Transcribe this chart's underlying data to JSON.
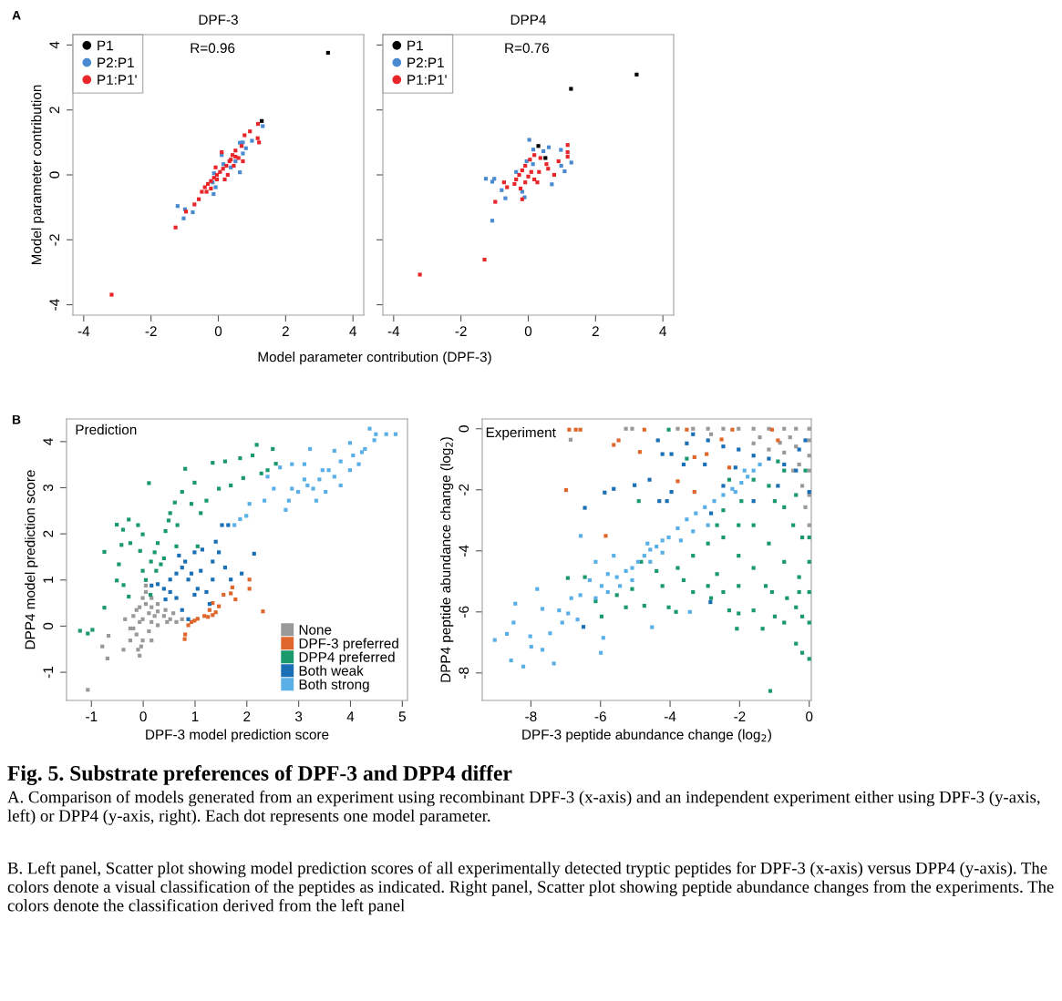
{
  "chart_data": [
    {
      "type": "scatter",
      "title": "DPF-3",
      "xlabel": "Model parameter contribution (DPF-3)",
      "ylabel": "Model parameter contribution",
      "xlim": [
        -4.32,
        4.32
      ],
      "ylim": [
        -4.32,
        4.32
      ],
      "xticks": [
        -4,
        -2,
        0,
        2,
        4
      ],
      "yticks": [
        -4,
        -2,
        0,
        2,
        4
      ],
      "marker": "square",
      "legend": "top left",
      "annotations": [
        "A",
        "R=0.96"
      ],
      "series": [
        {
          "name": "P1",
          "color": "#000000",
          "x": [
            3.26,
            1.29
          ],
          "values": [
            3.76,
            1.66
          ]
        },
        {
          "name": "P2:P1",
          "color": "#4a8ad0",
          "x": [
            1.32,
            1.0,
            0.82,
            0.73,
            0.64,
            0.64,
            0.1,
            0.15,
            0.37,
            -0.13,
            -0.17,
            -0.14,
            -0.08,
            -1.21,
            -0.99,
            -1.03,
            -0.76,
            0.51,
            0.73
          ],
          "values": [
            1.5,
            1.05,
            0.82,
            1.0,
            0.99,
            0.08,
            0.61,
            0.33,
            0.23,
            0.05,
            -0.23,
            -0.59,
            -0.38,
            -0.96,
            -1.06,
            -1.34,
            -1.15,
            0.42,
            0.66
          ]
        },
        {
          "name": "P1:P1'",
          "color": "#e8262a",
          "x": [
            -3.17,
            -1.27,
            -0.96,
            -0.71,
            -0.58,
            1.18,
            0.94,
            0.78,
            1.17,
            1.21,
            0.69,
            0.51,
            0.42,
            0.33,
            0.24,
            0.14,
            0.05,
            -0.04,
            -0.13,
            -0.22,
            -0.31,
            -0.4,
            -0.49,
            -0.35,
            0.19,
            0.73,
            0.6,
            0.46,
            0.28,
            -0.08,
            0.1,
            -0.04,
            0.51,
            0.37,
            -0.22
          ],
          "values": [
            -3.69,
            -1.62,
            -1.13,
            -0.91,
            -0.75,
            1.57,
            1.34,
            1.22,
            1.13,
            1.0,
            0.89,
            0.75,
            0.61,
            0.42,
            0.28,
            0.19,
            0.09,
            0.0,
            -0.09,
            -0.19,
            -0.28,
            -0.38,
            -0.52,
            -0.52,
            -0.14,
            0.42,
            0.52,
            0.28,
            0.0,
            0.23,
            0.7,
            -0.14,
            0.56,
            0.47,
            -0.42
          ]
        }
      ]
    },
    {
      "type": "scatter",
      "title": "DPP4",
      "xlim": [
        -4.32,
        4.32
      ],
      "ylim": [
        -4.32,
        4.32
      ],
      "xticks": [
        -4,
        -2,
        0,
        2,
        4
      ],
      "yticks": [
        -4,
        -2,
        0,
        2,
        4
      ],
      "tick_labels": "x",
      "marker": "square",
      "legend": "top left",
      "annotations": [
        "R=0.76"
      ],
      "series": [
        {
          "name": "P1",
          "color": "#000000",
          "x": [
            3.22,
            1.27,
            0.3,
            0.51
          ],
          "values": [
            3.09,
            2.65,
            0.89,
            0.52
          ]
        },
        {
          "name": "P2:P1",
          "color": "#4a8ad0",
          "x": [
            0.03,
            0.15,
            0.45,
            0.61,
            0.97,
            1.28,
            1.08,
            0.98,
            0.7,
            -1.26,
            -1.01,
            -1.07,
            -0.79,
            -0.68,
            -0.11,
            -0.18,
            -1.07,
            -0.05,
            0.14,
            -0.36
          ],
          "values": [
            1.08,
            0.78,
            0.73,
            0.85,
            0.77,
            0.38,
            0.11,
            0.28,
            -0.29,
            -0.12,
            -0.12,
            -0.21,
            -0.47,
            -0.72,
            -0.69,
            -0.52,
            -1.41,
            0.42,
            0.33,
            0.09
          ]
        },
        {
          "name": "P1:P1'",
          "color": "#e8262a",
          "x": [
            -3.22,
            -1.3,
            -0.98,
            1.17,
            1.17,
            1.17,
            0.9,
            0.77,
            0.59,
            0.54,
            0.36,
            0.18,
            0.05,
            -0.09,
            -0.18,
            -0.27,
            -0.36,
            -0.41,
            -0.23,
            -0.18,
            -0.72,
            -0.63,
            0.09,
            0.0,
            0.18,
            0.32,
            -0.09,
            0.27
          ],
          "values": [
            -3.07,
            -2.61,
            -0.83,
            0.92,
            0.7,
            0.56,
            0.42,
            0.0,
            0.19,
            0.33,
            0.52,
            0.61,
            0.47,
            0.28,
            0.14,
            0.0,
            -0.14,
            -0.28,
            -0.42,
            -0.75,
            -0.23,
            -0.38,
            0.09,
            -0.05,
            -0.14,
            0.09,
            -0.23,
            -0.23
          ]
        }
      ]
    },
    {
      "type": "scatter",
      "xlabel": "DPF-3 model prediction score",
      "ylabel": "DPP4 model prediction score",
      "xlim": [
        -1.48,
        5.1
      ],
      "ylim": [
        -1.61,
        4.49
      ],
      "xticks": [
        -1,
        0,
        1,
        2,
        3,
        4,
        5
      ],
      "yticks": [
        -1,
        0,
        1,
        2,
        3,
        4
      ],
      "marker": "square",
      "legend": "bottom right",
      "annotations": [
        "B",
        "Prediction"
      ],
      "series": [
        {
          "name": "None",
          "color": "#999999",
          "x": [
            -1.07,
            -0.69,
            -0.79,
            -0.67,
            -0.38,
            -0.35,
            -0.07,
            -0.1,
            -0.25,
            -0.25,
            -0.19,
            -0.07,
            -0.01,
            0.05,
            0.05,
            0.16,
            0.28,
            0.43,
            0.58,
            0.75,
            0.64,
            0.46,
            0.28,
            0.11,
            -0.01,
            -0.04,
            0.16,
            0.11,
            0.22,
            0.4,
            -0.07,
            -0.13,
            0.05,
            0.16,
            -0.01,
            -0.13,
            -0.19,
            0.28,
            0.52,
            0.16
          ],
          "values": [
            -1.38,
            -0.7,
            -0.44,
            -0.21,
            -0.51,
            0.15,
            -0.64,
            -0.51,
            -0.31,
            -0.05,
            0.22,
            0.41,
            0.61,
            0.74,
            0.88,
            0.61,
            0.48,
            0.35,
            0.28,
            0.15,
            0.09,
            0.09,
            0.02,
            -0.11,
            -0.31,
            -0.44,
            0.09,
            0.28,
            0.22,
            0.22,
            0.09,
            -0.18,
            0.48,
            0.41,
            0.15,
            0.35,
            -0.05,
            0.32,
            0.15,
            -0.31
          ]
        },
        {
          "name": "DPF-3 preferred",
          "color": "#e0672c",
          "x": [
            0.8,
            0.81,
            0.87,
            0.99,
            1.05,
            1.18,
            1.34,
            1.4,
            1.28,
            1.34,
            1.55,
            1.69,
            1.78,
            1.72,
            2.05,
            2.05,
            2.31,
            1.46,
            0.93,
            1.25
          ],
          "values": [
            -0.28,
            -0.18,
            0.02,
            0.12,
            0.16,
            0.22,
            0.24,
            0.3,
            0.35,
            0.5,
            0.68,
            0.71,
            0.58,
            0.84,
            1.01,
            0.81,
            0.32,
            0.43,
            0.09,
            0.2
          ]
        },
        {
          "name": "DPP4 preferred",
          "color": "#1a9a6c",
          "x": [
            -1.22,
            -1.07,
            -0.98,
            -0.75,
            -0.75,
            -0.51,
            -0.47,
            -0.51,
            -0.39,
            -0.38,
            -0.28,
            -0.28,
            -0.25,
            -0.1,
            -0.06,
            -0.01,
            0.05,
            0.11,
            0.15,
            0.22,
            0.25,
            0.28,
            0.34,
            0.43,
            0.49,
            0.52,
            0.61,
            0.66,
            0.75,
            0.81,
            0.93,
            0.99,
            1.11,
            1.22,
            1.34,
            1.46,
            1.58,
            1.69,
            1.87,
            2.11,
            2.19,
            2.28,
            2.4,
            2.5,
            2.56,
            1.93,
            1.05,
            0.4,
            0.64,
            0.14,
            -0.42,
            -0.01
          ],
          "values": [
            -0.1,
            -0.16,
            -0.08,
            0.4,
            1.61,
            2.2,
            1.34,
            0.99,
            2.09,
            0.89,
            2.31,
            0.64,
            1.8,
            2.19,
            1.63,
            1.2,
            1.0,
            3.1,
            1.4,
            1.6,
            1.2,
            1.8,
            1.34,
            2.06,
            2.29,
            2.45,
            2.68,
            2.19,
            2.91,
            3.41,
            2.65,
            3.11,
            2.45,
            2.72,
            3.54,
            2.98,
            3.57,
            3.05,
            3.64,
            3.7,
            3.93,
            3.31,
            3.38,
            3.84,
            3.52,
            3.21,
            1.73,
            1.47,
            1.73,
            0.68,
            1.76,
            1.99
          ]
        },
        {
          "name": "Both weak",
          "color": "#1a6fb5",
          "x": [
            0.16,
            0.28,
            0.4,
            0.52,
            0.43,
            0.64,
            0.75,
            0.87,
            0.99,
            0.87,
            0.75,
            0.99,
            1.11,
            1.22,
            1.34,
            1.4,
            1.34,
            1.52,
            1.64,
            1.46,
            1.69,
            1.58,
            1.9,
            2.14,
            1.28,
            1.05,
            0.69,
            0.81,
            0.52,
            0.64,
            0.93,
            1.14
          ],
          "values": [
            0.88,
            0.91,
            0.81,
            0.74,
            0.58,
            0.61,
            0.35,
            0.15,
            0.68,
            1.01,
            1.27,
            1.6,
            1.2,
            0.74,
            1.01,
            1.83,
            1.4,
            2.19,
            2.19,
            1.6,
            1.01,
            1.27,
            1.14,
            1.57,
            0.48,
            0.81,
            1.53,
            1.4,
            1.01,
            1.14,
            1.14,
            1.66
          ]
        },
        {
          "name": "Both strong",
          "color": "#5ab0e6",
          "x": [
            4.69,
            4.87,
            4.37,
            4.49,
            4.46,
            3.99,
            4.28,
            4.05,
            3.69,
            3.22,
            3.81,
            3.58,
            3.4,
            3.69,
            3.81,
            3.52,
            3.28,
            3.11,
            2.99,
            2.87,
            2.81,
            2.75,
            2.52,
            2.4,
            2.64,
            2.87,
            3.11,
            2.34,
            2.05,
            1.99,
            1.87,
            1.76,
            3.34,
            3.99,
            4.16,
            3.46,
            3.17,
            4.22
          ],
          "values": [
            4.16,
            4.16,
            4.28,
            4.16,
            4.03,
            3.97,
            3.84,
            3.7,
            3.8,
            3.84,
            3.57,
            3.38,
            3.18,
            3.24,
            3.05,
            2.91,
            2.98,
            3.18,
            2.91,
            2.98,
            2.72,
            2.52,
            2.98,
            3.24,
            3.44,
            3.51,
            3.51,
            2.72,
            2.65,
            2.39,
            2.32,
            2.19,
            2.72,
            3.38,
            3.51,
            3.38,
            3.05,
            3.77
          ]
        }
      ]
    },
    {
      "type": "scatter",
      "xlabel": "DPF-3 peptide abundance change (log$_{2}$)",
      "ylabel": "DPP4 peptide abundance change (log$_{2}$)",
      "xlim": [
        -9.4,
        0.06
      ],
      "ylim": [
        -8.9,
        0.32
      ],
      "xticks": [
        -8,
        -6,
        -4,
        -2,
        0
      ],
      "yticks": [
        -8,
        -6,
        -4,
        -2,
        0
      ],
      "marker": "square",
      "annotations": [
        "Experiment",
        "Fig. 5. Substrate preferences of DPF-3 and DPP4 differ",
        "A. Comparison of models generated from an experiment using recombinant DPF-3 (x-axis) and an independent experiment either using DPF-3 (y-axis, left) or DPP4 (y-axis, right). Each dot represents one model parameter.",
        "B. Left panel, Scatter plot showing model prediction scores of all experimentally detected tryptic peptides for DPF-3 (x-axis) versus DPP4 (y-axis). The colors denote a visual classification of the peptides as indicated. Right panel, Scatter plot showing peptide abundance changes from the experiments. The colors denote the classification derived from the left panel"
      ],
      "series": [
        {
          "color": "#999999",
          "x": [
            0,
            -0.38,
            -0.72,
            -1.16,
            -1.6,
            -2.03,
            -2.47,
            -2.91,
            -3.34,
            -3.78,
            -5.27,
            -5.09,
            0,
            0,
            0,
            0,
            0,
            -0.38,
            -0.72,
            -0.29,
            -0.84,
            -1.16,
            -0.2,
            -0.11,
            -0.55,
            -1.42,
            -2.82,
            -6.86,
            -0.46,
            -1.6
          ],
          "values": [
            0,
            0,
            0,
            0,
            0,
            0,
            0,
            0,
            0,
            0,
            0,
            0,
            -0.38,
            -0.88,
            -1.37,
            -2.17,
            -3.16,
            -0.58,
            -0.78,
            -1.17,
            -0.46,
            -0.68,
            -1.87,
            -2.57,
            -0.28,
            -0.28,
            -0.18,
            -0.36,
            -1.37,
            -0.48
          ]
        },
        {
          "color": "#e0672c",
          "x": [
            -6.9,
            -6.71,
            -6.58,
            -6.99,
            -5.85,
            -5.62,
            -5.48,
            -4.87,
            -4.74,
            -3.3,
            -3.3,
            -2.95,
            -2.52,
            -2.3,
            -1.07,
            -0.9,
            -2.21,
            -3.78,
            -3.52
          ],
          "values": [
            -0.03,
            -0.03,
            -0.03,
            -2.01,
            -3.51,
            -0.53,
            -0.38,
            -0.76,
            -0.03,
            -0.93,
            -2.07,
            -0.83,
            -0.35,
            -1.27,
            -0.03,
            -0.38,
            -0.03,
            -1.72,
            -0.03
          ]
        },
        {
          "color": "#1a9a6c",
          "x": [
            0,
            0,
            0,
            0,
            0,
            -0.2,
            -0.38,
            -0.72,
            -0.99,
            -1.07,
            -1.34,
            -1.12,
            -1.6,
            -2.03,
            -2.08,
            -2.3,
            -2.47,
            -2.65,
            -2.91,
            -3.34,
            -3.61,
            -3.83,
            -4.04,
            -4.22,
            -4.74,
            -4.83,
            -5.09,
            -5.27,
            -5.53,
            -5.97,
            -6.14,
            -6.45,
            -6.94,
            -4.9,
            -2.03,
            -1.6,
            -1.16,
            -0.72,
            -0.29,
            -0.2,
            -0.46,
            -0.72,
            -0.99,
            -0.38,
            -1.6,
            -2.03,
            -2.47,
            -2.91,
            -3.34,
            -2.65,
            -1.95,
            -2.47,
            -1.16,
            -1.6,
            -0.72,
            -0.11,
            -0.9,
            -2.3,
            -3.52,
            -4.04,
            -0.2,
            -0.38,
            -0.64,
            -0.29,
            -2.82,
            -1.25,
            -2.03,
            -3.78,
            -4.39
          ],
          "values": [
            -3.56,
            -4.36,
            -5.35,
            -6.35,
            -7.54,
            -7.34,
            -7.04,
            -6.35,
            -6.15,
            -5.35,
            -6.55,
            -8.59,
            -5.95,
            -6.05,
            -6.55,
            -5.95,
            -5.35,
            -4.76,
            -5.15,
            -5.35,
            -4.96,
            -6.0,
            -5.85,
            -5.15,
            -5.8,
            -4.36,
            -5.25,
            -5.85,
            -5.45,
            -6.15,
            -5.65,
            -4.86,
            -4.89,
            -2.37,
            -4.16,
            -4.56,
            -3.76,
            -4.36,
            -4.86,
            -3.56,
            -3.16,
            -2.57,
            -2.37,
            -2.17,
            -3.16,
            -3.16,
            -3.56,
            -3.76,
            -4.16,
            -3.16,
            -2.37,
            -2.67,
            -1.87,
            -1.67,
            -1.37,
            -1.37,
            -1.07,
            -1.67,
            -0.98,
            -0.03,
            -6.15,
            -5.85,
            -5.55,
            -5.35,
            -5.55,
            -5.15,
            -5.15,
            -4.56,
            -4.66
          ]
        },
        {
          "color": "#1a6fb5",
          "x": [
            0,
            -0.38,
            -0.72,
            -1.16,
            -1.6,
            -2.03,
            -2.47,
            -2.91,
            -3.34,
            -3.52,
            -3.61,
            -3.96,
            -4.22,
            -4.35,
            -4.59,
            -5.02,
            -5.62,
            -5.88,
            -6.45,
            -4.31,
            -4.09,
            -2.82,
            -2.84,
            -6.49,
            -2.47,
            -1.6,
            -0.9,
            -0.29,
            -0.11,
            -3.0,
            -2.12,
            -3.96
          ],
          "values": [
            -2.07,
            -1.37,
            -1.17,
            -0.98,
            -0.88,
            -0.68,
            -0.58,
            -0.38,
            -0.18,
            -0.48,
            -1.17,
            -0.83,
            -0.83,
            -0.38,
            -1.67,
            -1.85,
            -1.97,
            -2.09,
            -2.59,
            -2.37,
            -2.37,
            -2.77,
            -5.68,
            -6.49,
            -1.87,
            -2.37,
            -1.87,
            -0.68,
            -0.38,
            -1.17,
            -1.27,
            -2.07
          ]
        },
        {
          "color": "#5ab0e6",
          "x": [
            -9.04,
            -8.69,
            -8.57,
            -8.45,
            -8.5,
            -8.22,
            -8.02,
            -7.99,
            -7.82,
            -7.67,
            -7.67,
            -7.45,
            -7.34,
            -7.19,
            -7.1,
            -6.93,
            -6.84,
            -6.66,
            -6.58,
            -6.31,
            -6.14,
            -5.99,
            -5.92,
            -5.97,
            -5.79,
            -5.53,
            -5.27,
            -5.09,
            -4.92,
            -4.74,
            -4.57,
            -4.39,
            -4.22,
            -4.04,
            -3.78,
            -3.52,
            -3.26,
            -3.0,
            -2.73,
            -2.47,
            -2.21,
            -1.95,
            -1.77,
            -1.86,
            -1.6,
            -1.42,
            -5.44,
            -5.09,
            -5.79,
            -4.57,
            -4.22,
            -3.69,
            -3.34,
            -2.91,
            -4.65,
            -5.62,
            -6.14,
            -6.57,
            -4.52,
            -3.43,
            -2.12
          ],
          "values": [
            -6.92,
            -6.72,
            -7.59,
            -5.73,
            -6.35,
            -7.79,
            -6.8,
            -7.14,
            -5.25,
            -7.24,
            -5.9,
            -6.7,
            -7.69,
            -5.95,
            -6.35,
            -6.05,
            -5.55,
            -6.25,
            -5.45,
            -4.96,
            -5.55,
            -7.34,
            -6.85,
            -5.15,
            -4.76,
            -4.86,
            -4.66,
            -4.56,
            -4.36,
            -4.16,
            -3.96,
            -3.86,
            -3.66,
            -3.56,
            -3.26,
            -2.97,
            -2.77,
            -2.57,
            -2.37,
            -2.17,
            -1.97,
            -1.77,
            -1.57,
            -1.37,
            -1.37,
            -1.17,
            -5.15,
            -4.96,
            -5.35,
            -4.36,
            -4.06,
            -3.66,
            -3.36,
            -3.16,
            -3.76,
            -4.16,
            -4.36,
            -3.51,
            -6.5,
            -6.0,
            -2.07
          ]
        }
      ]
    }
  ]
}
